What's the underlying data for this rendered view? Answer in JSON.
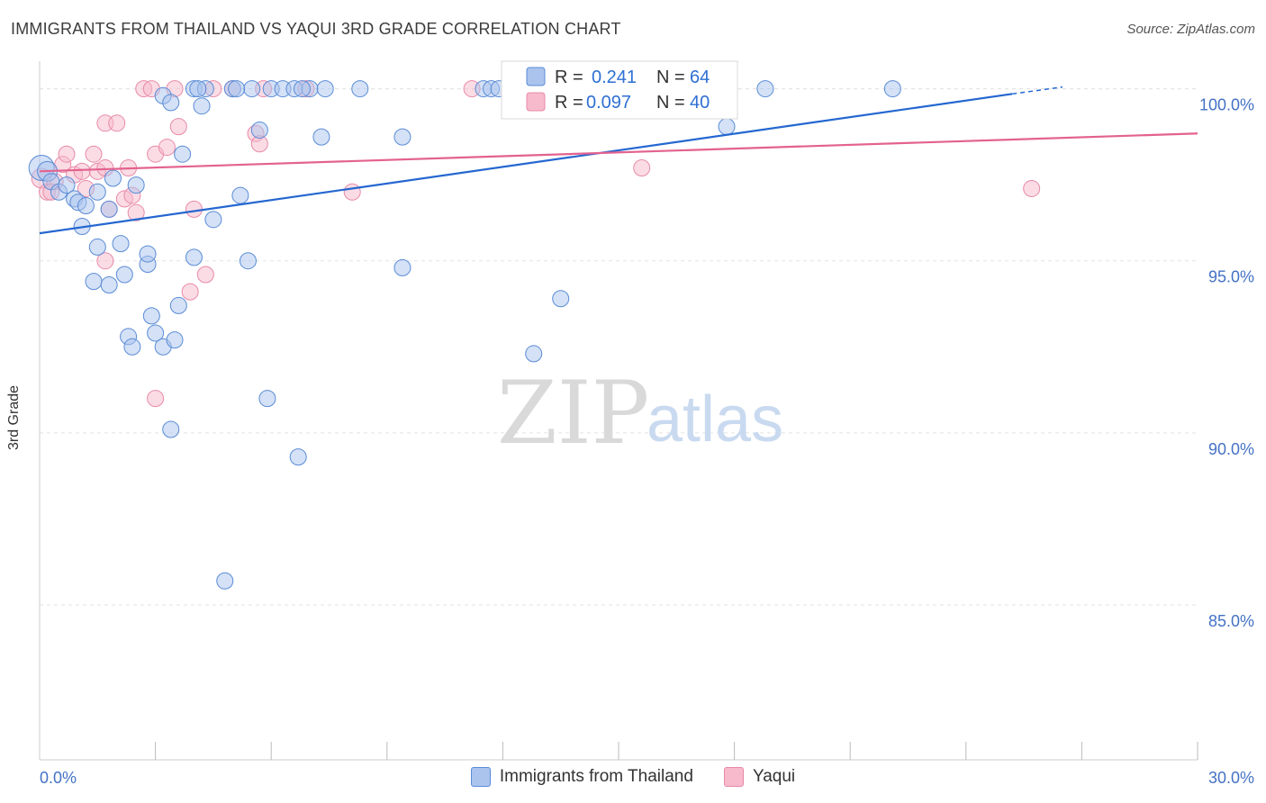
{
  "title": "IMMIGRANTS FROM THAILAND VS YAQUI 3RD GRADE CORRELATION CHART",
  "source": "Source: ZipAtlas.com",
  "watermark": {
    "zip": "ZIP",
    "atlas": "atlas"
  },
  "colors": {
    "blue_fill": "#aac4ee",
    "blue_stroke": "#5a8cd6",
    "blue_line": "#2467d0",
    "pink_fill": "#f7b9cc",
    "pink_stroke": "#e88aa8",
    "pink_line": "#e3628f",
    "tick_text": "#4472c4",
    "grid": "#e3e3e3"
  },
  "legend": {
    "blue": {
      "r_label": "R = ",
      "r_value": "0.241",
      "n_label": "N = ",
      "n_value": "64"
    },
    "pink": {
      "r_label": "R = ",
      "r_value": "0.097",
      "n_label": "N = ",
      "n_value": "40"
    }
  },
  "bottom_legend": {
    "blue_label": "Immigrants from Thailand",
    "pink_label": "Yaqui"
  },
  "chart_data": {
    "type": "scatter",
    "title": "IMMIGRANTS FROM THAILAND VS YAQUI 3RD GRADE CORRELATION CHART",
    "xlabel": "",
    "ylabel": "3rd Grade",
    "xlim": [
      0,
      30
    ],
    "ylim": [
      80.5,
      100.8
    ],
    "x_tick_labels": [
      {
        "value": 0,
        "label": "0.0%"
      },
      {
        "value": 30,
        "label": "30.0%"
      }
    ],
    "x_minor_ticks": [
      3,
      6,
      9,
      12,
      15,
      18,
      21,
      24,
      27
    ],
    "y_ticks": [
      {
        "value": 85,
        "label": "85.0%"
      },
      {
        "value": 90,
        "label": "90.0%"
      },
      {
        "value": 95,
        "label": "95.0%"
      },
      {
        "value": 100,
        "label": "100.0%"
      }
    ],
    "series": [
      {
        "name": "Immigrants from Thailand",
        "color_key": "blue",
        "trend": {
          "x0": 0,
          "y0": 95.8,
          "x1": 25.2,
          "y1": 99.85,
          "dash_to_x": 26.5,
          "dash_to_y": 100.05
        },
        "points": [
          [
            0.05,
            97.7,
            14
          ],
          [
            0.2,
            97.6,
            11
          ],
          [
            0.3,
            97.3,
            9
          ],
          [
            0.5,
            97.0,
            9
          ],
          [
            0.7,
            97.2,
            9
          ],
          [
            0.9,
            96.8,
            9
          ],
          [
            1.0,
            96.7,
            9
          ],
          [
            1.2,
            96.6,
            9
          ],
          [
            1.1,
            96.0,
            9
          ],
          [
            1.5,
            97.0,
            9
          ],
          [
            1.9,
            97.4,
            9
          ],
          [
            2.5,
            97.2,
            9
          ],
          [
            1.8,
            96.5,
            9
          ],
          [
            1.5,
            95.4,
            9
          ],
          [
            2.1,
            95.5,
            9
          ],
          [
            2.8,
            94.9,
            9
          ],
          [
            2.8,
            95.2,
            9
          ],
          [
            2.2,
            94.6,
            9
          ],
          [
            1.4,
            94.4,
            9
          ],
          [
            1.8,
            94.3,
            9
          ],
          [
            3.6,
            93.7,
            9
          ],
          [
            2.9,
            93.4,
            9
          ],
          [
            2.3,
            92.8,
            9
          ],
          [
            3.0,
            92.9,
            9
          ],
          [
            2.4,
            92.5,
            9
          ],
          [
            3.2,
            92.5,
            9
          ],
          [
            3.5,
            92.7,
            9
          ],
          [
            3.7,
            98.1,
            9
          ],
          [
            3.2,
            99.8,
            9
          ],
          [
            3.4,
            99.6,
            9
          ],
          [
            4.2,
            99.5,
            9
          ],
          [
            4.0,
            100.0,
            9
          ],
          [
            4.3,
            100.0,
            9
          ],
          [
            5.0,
            100.0,
            9
          ],
          [
            5.5,
            100.0,
            9
          ],
          [
            6.0,
            100.0,
            9
          ],
          [
            6.3,
            100.0,
            9
          ],
          [
            6.6,
            100.0,
            9
          ],
          [
            7.0,
            100.0,
            9
          ],
          [
            6.8,
            100.0,
            9
          ],
          [
            8.3,
            100.0,
            9
          ],
          [
            11.5,
            100.0,
            9
          ],
          [
            11.7,
            100.0,
            9
          ],
          [
            18.8,
            100.0,
            9
          ],
          [
            22.1,
            100.0,
            9
          ],
          [
            5.7,
            98.8,
            9
          ],
          [
            7.3,
            98.6,
            9
          ],
          [
            9.4,
            98.6,
            9
          ],
          [
            5.2,
            96.9,
            9
          ],
          [
            4.5,
            96.2,
            9
          ],
          [
            4.0,
            95.1,
            9
          ],
          [
            5.4,
            95.0,
            9
          ],
          [
            9.4,
            94.8,
            9
          ],
          [
            13.5,
            93.9,
            9
          ],
          [
            12.8,
            92.3,
            9
          ],
          [
            5.9,
            91.0,
            9
          ],
          [
            3.4,
            90.1,
            9
          ],
          [
            6.7,
            89.3,
            9
          ],
          [
            4.8,
            85.7,
            9
          ],
          [
            17.8,
            98.9,
            9
          ],
          [
            11.9,
            100.0,
            9
          ],
          [
            4.1,
            100.0,
            9
          ],
          [
            5.1,
            100.0,
            9
          ],
          [
            7.4,
            100.0,
            9
          ]
        ]
      },
      {
        "name": "Yaqui",
        "color_key": "pink",
        "trend": {
          "x0": 0,
          "y0": 97.6,
          "x1": 30,
          "y1": 98.7
        },
        "points": [
          [
            0.05,
            97.4,
            11
          ],
          [
            0.2,
            97.0,
            9
          ],
          [
            0.4,
            97.3,
            9
          ],
          [
            0.6,
            97.8,
            9
          ],
          [
            0.7,
            98.1,
            9
          ],
          [
            0.9,
            97.5,
            9
          ],
          [
            1.1,
            97.6,
            9
          ],
          [
            1.2,
            97.1,
            9
          ],
          [
            1.4,
            98.1,
            9
          ],
          [
            1.5,
            97.6,
            9
          ],
          [
            1.7,
            97.7,
            9
          ],
          [
            1.8,
            96.5,
            9
          ],
          [
            2.2,
            96.8,
            9
          ],
          [
            2.4,
            96.9,
            9
          ],
          [
            2.5,
            96.4,
            9
          ],
          [
            2.3,
            97.7,
            9
          ],
          [
            1.7,
            99.0,
            9
          ],
          [
            2.0,
            99.0,
            9
          ],
          [
            2.7,
            100.0,
            9
          ],
          [
            2.9,
            100.0,
            9
          ],
          [
            3.5,
            100.0,
            9
          ],
          [
            4.5,
            100.0,
            9
          ],
          [
            5.0,
            100.0,
            9
          ],
          [
            5.8,
            100.0,
            9
          ],
          [
            6.9,
            100.0,
            9
          ],
          [
            11.2,
            100.0,
            9
          ],
          [
            3.0,
            98.1,
            9
          ],
          [
            3.3,
            98.3,
            9
          ],
          [
            3.6,
            98.9,
            9
          ],
          [
            5.6,
            98.7,
            9
          ],
          [
            5.7,
            98.4,
            9
          ],
          [
            4.0,
            96.5,
            9
          ],
          [
            4.3,
            94.6,
            9
          ],
          [
            3.9,
            94.1,
            9
          ],
          [
            1.7,
            95.0,
            9
          ],
          [
            3.0,
            91.0,
            9
          ],
          [
            8.1,
            97.0,
            9
          ],
          [
            15.6,
            97.7,
            9
          ],
          [
            25.7,
            97.1,
            9
          ],
          [
            0.3,
            97.0,
            9
          ]
        ]
      }
    ]
  }
}
